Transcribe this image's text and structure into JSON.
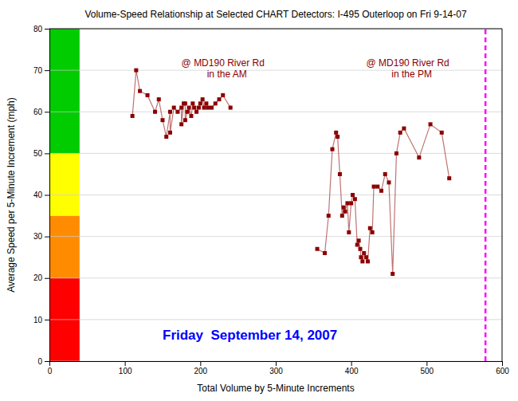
{
  "chart_data": {
    "type": "line",
    "title": "Volume-Speed Relationship at Selected CHART Detectors: I-495 Outerloop on Fri 9-14-07",
    "x_label": "Total Volume by 5-Minute Increments",
    "y_label": "Average Speed per 5-Minute Increment (mph)",
    "xlim": [
      0,
      600
    ],
    "ylim": [
      0,
      80
    ],
    "xticks": [
      0,
      100,
      200,
      300,
      400,
      500,
      600
    ],
    "yticks": [
      0,
      10,
      20,
      30,
      40,
      50,
      60,
      70,
      80
    ],
    "grid": "y",
    "series": [
      {
        "x": [
          110,
          115,
          120,
          130,
          140,
          145,
          150,
          155,
          160,
          160,
          165,
          170,
          175,
          175,
          178,
          180,
          180,
          183,
          185,
          188,
          190,
          192,
          195,
          198,
          200,
          203,
          205,
          208,
          210,
          215,
          220,
          225,
          230,
          240
        ],
        "values": [
          59,
          70,
          65,
          64,
          60,
          63,
          58,
          54,
          60,
          55,
          61,
          60,
          61,
          57,
          62,
          62,
          58,
          60,
          61,
          59,
          62,
          61,
          60,
          61,
          62,
          63,
          61,
          62,
          61,
          61,
          62,
          63,
          64,
          61
        ],
        "color": "#8b0000",
        "marker": "square"
      },
      {
        "x": [
          355,
          365,
          370,
          375,
          380,
          382,
          385,
          388,
          390,
          392,
          395,
          397,
          400,
          402,
          405,
          408,
          410,
          412,
          413,
          415,
          417,
          420,
          422,
          425,
          428,
          430,
          435,
          440,
          445,
          450,
          455,
          460,
          465,
          470,
          490,
          505,
          520,
          530
        ],
        "values": [
          27,
          26,
          35,
          51,
          55,
          54,
          45,
          35,
          37,
          36,
          38,
          31,
          38,
          40,
          39,
          28,
          29,
          27,
          25,
          24,
          26,
          25,
          24,
          32,
          31,
          42,
          42,
          41,
          45,
          43,
          21,
          50,
          55,
          56,
          49,
          57,
          55,
          44
        ],
        "color": "#8b0000",
        "marker": "square"
      }
    ],
    "bands": [
      {
        "y": [
          0,
          20
        ],
        "x": [
          0,
          40
        ],
        "color": "#ff0000"
      },
      {
        "y": [
          20,
          35
        ],
        "x": [
          0,
          40
        ],
        "color": "#ff8c00"
      },
      {
        "y": [
          35,
          50
        ],
        "x": [
          0,
          40
        ],
        "color": "#ffff00"
      },
      {
        "y": [
          50,
          80
        ],
        "x": [
          0,
          40
        ],
        "color": "#00cc00"
      }
    ],
    "reference_line": {
      "x": 578,
      "color": "#ff00ff",
      "line_style": "dashed"
    },
    "annotations": [
      {
        "text": "@ MD190 River Rd\n   in the AM",
        "x": 230,
        "y": 73,
        "color": "#8b0000"
      },
      {
        "text": "@ MD190 River Rd\n   in the PM",
        "x": 475,
        "y": 73,
        "color": "#8b0000"
      }
    ],
    "date_text": {
      "text": "Friday  September 14, 2007",
      "x": 150,
      "y": 6,
      "color": "#0000ff"
    }
  }
}
